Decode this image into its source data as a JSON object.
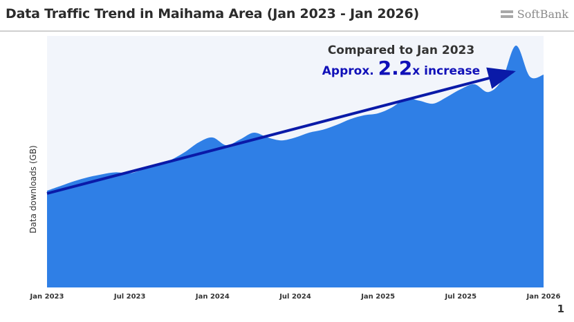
{
  "header": {
    "title": "Data Traffic Trend in Maihama Area (Jan 2023 - Jan 2026)",
    "brand": "SoftBank"
  },
  "page_number": "1",
  "colors": {
    "area_fill": "#2f7fe6",
    "plot_background": "#f2f5fb",
    "arrow": "#0a1aa8",
    "annotation_text": "#333333",
    "annotation_emphasis": "#1010b8"
  },
  "chart_data": {
    "type": "area",
    "title": "",
    "xlabel": "",
    "ylabel": "Data downloads (GB)",
    "y_units_note": "",
    "x_tick_labels": [
      "Jan 2023",
      "Jul 2023",
      "Jan 2024",
      "Jul 2024",
      "Jan 2025",
      "Jul 2025",
      "Jan 2026"
    ],
    "series": [
      {
        "x": [
          "2023-01",
          "2023-02",
          "2023-03",
          "2023-04",
          "2023-05",
          "2023-06",
          "2023-07",
          "2023-08",
          "2023-09",
          "2023-10",
          "2023-11",
          "2023-12",
          "2024-01",
          "2024-02",
          "2024-03",
          "2024-04",
          "2024-05",
          "2024-06",
          "2024-07",
          "2024-08",
          "2024-09",
          "2024-10",
          "2024-11",
          "2024-12",
          "2025-01",
          "2025-02",
          "2025-03",
          "2025-04",
          "2025-05",
          "2025-06",
          "2025-07",
          "2025-08",
          "2025-09",
          "2025-10",
          "2025-11",
          "2025-12",
          "2026-01"
        ],
        "values": [
          1.0,
          1.05,
          1.1,
          1.14,
          1.17,
          1.19,
          1.18,
          1.22,
          1.26,
          1.32,
          1.4,
          1.5,
          1.55,
          1.47,
          1.53,
          1.6,
          1.55,
          1.52,
          1.55,
          1.6,
          1.63,
          1.68,
          1.74,
          1.78,
          1.8,
          1.86,
          1.95,
          1.93,
          1.9,
          1.97,
          2.05,
          2.1,
          2.02,
          2.15,
          2.5,
          2.18,
          2.2
        ]
      }
    ],
    "ylim": [
      0,
      2.6
    ],
    "grid": false,
    "legend": "none",
    "annotation": {
      "line1": "Compared to Jan 2023",
      "line2_prefix": "Approx. ",
      "line2_value": "2.2",
      "line2_suffix": "x increase"
    }
  }
}
